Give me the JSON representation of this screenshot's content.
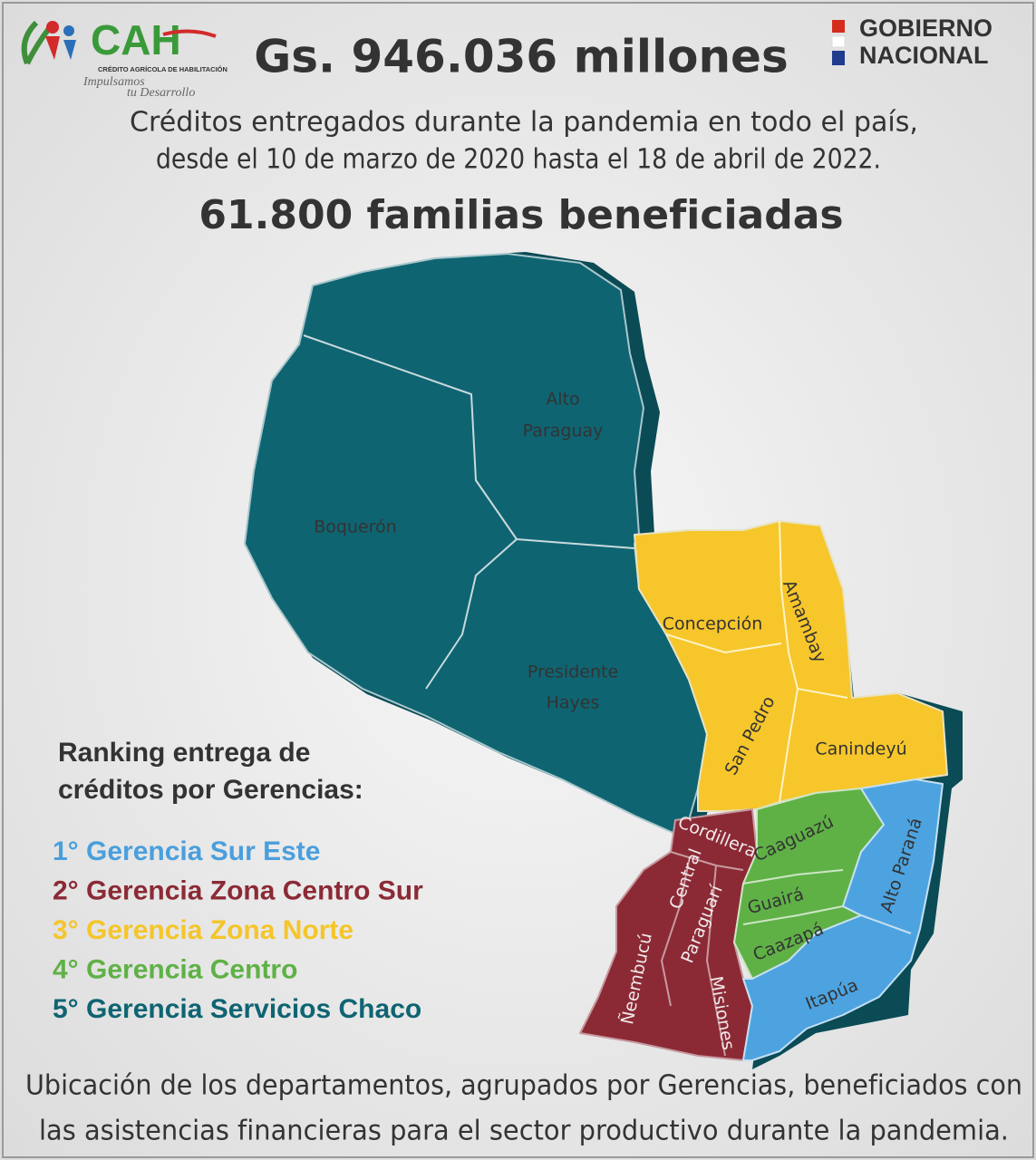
{
  "header": {
    "logo_name": "CAH",
    "logo_subtitle": "CRÉDITO AGRÍCOLA DE HABILITACIÓN",
    "logo_slogan_lines": [
      "Impulsamos",
      "tu Desarrollo"
    ],
    "amount": "Gs. 946.036 millones",
    "government_lines": [
      "GOBIERNO",
      "NACIONAL"
    ]
  },
  "subtitle_lines": [
    "Créditos entregados durante la pandemia en todo el país,",
    "desde el 10 de marzo de 2020 hasta el 18 de abril de 2022."
  ],
  "families": "61.800 familias beneficiadas",
  "map": {
    "departments": [
      {
        "lines": [
          "Alto",
          "Paraguay"
        ]
      },
      {
        "lines": [
          "Boquerón"
        ]
      },
      {
        "lines": [
          "Presidente",
          "Hayes"
        ]
      },
      {
        "lines": [
          "Concepción"
        ]
      },
      {
        "lines": [
          "Amambay"
        ]
      },
      {
        "lines": [
          "San Pedro"
        ]
      },
      {
        "lines": [
          "Canindeyú"
        ]
      },
      {
        "lines": [
          "Cordillera"
        ]
      },
      {
        "lines": [
          "Central"
        ]
      },
      {
        "lines": [
          "Paraguarí"
        ]
      },
      {
        "lines": [
          "Ñeembucú"
        ]
      },
      {
        "lines": [
          "Misiones"
        ]
      },
      {
        "lines": [
          "Caaguazú"
        ]
      },
      {
        "lines": [
          "Guairá"
        ]
      },
      {
        "lines": [
          "Caazapá"
        ]
      },
      {
        "lines": [
          "Alto Paraná"
        ]
      },
      {
        "lines": [
          "Itapúa"
        ]
      }
    ]
  },
  "ranking": {
    "title_lines": [
      "Ranking entrega de",
      "créditos por Gerencias:"
    ],
    "items": [
      {
        "label": "1° Gerencia Sur Este",
        "color": "#4a9fdc"
      },
      {
        "label": "2° Gerencia Zona Centro Sur",
        "color": "#8b2a35"
      },
      {
        "label": "3° Gerencia Zona Norte",
        "color": "#f5c52a"
      },
      {
        "label": "4° Gerencia Centro",
        "color": "#5fb146"
      },
      {
        "label": "5° Gerencia Servicios Chaco",
        "color": "#0f6472"
      }
    ]
  },
  "footer_lines": [
    "Ubicación de los departamentos, agrupados por Gerencias, beneficiados con",
    "las asistencias financieras para el sector productivo durante la pandemia."
  ]
}
